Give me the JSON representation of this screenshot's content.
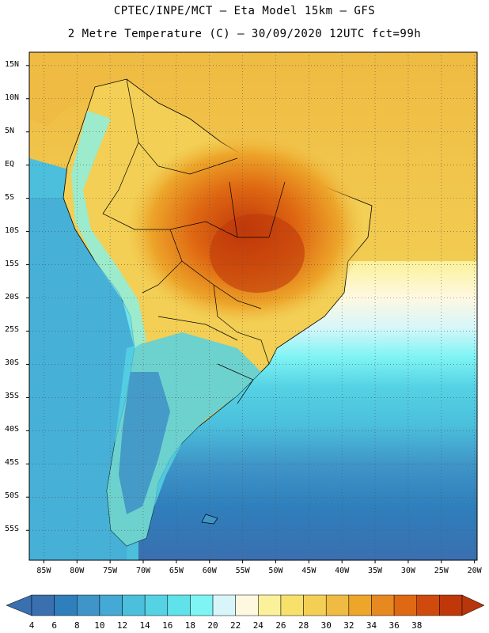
{
  "header": {
    "line1": "CPTEC/INPE/MCT  –  Eta Model 15km – GFS",
    "line2": "2 Metre Temperature (C) – 30/09/2020 12UTC fct=99h"
  },
  "axes": {
    "lat_labels": [
      "15N",
      "10N",
      "5N",
      "EQ",
      "5S",
      "10S",
      "15S",
      "20S",
      "25S",
      "30S",
      "35S",
      "40S",
      "45S",
      "50S",
      "55S"
    ],
    "lat_values": [
      15,
      10,
      5,
      0,
      -5,
      -10,
      -15,
      -20,
      -25,
      -30,
      -35,
      -40,
      -45,
      -50,
      -55
    ],
    "lon_labels": [
      "85W",
      "80W",
      "75W",
      "70W",
      "65W",
      "60W",
      "55W",
      "50W",
      "45W",
      "40W",
      "35W",
      "30W",
      "25W",
      "20W"
    ],
    "lon_values": [
      -85,
      -80,
      -75,
      -70,
      -65,
      -60,
      -55,
      -50,
      -45,
      -40,
      -35,
      -30,
      -25,
      -20
    ]
  },
  "colorbar": {
    "labels": [
      "4",
      "6",
      "8",
      "10",
      "12",
      "14",
      "16",
      "18",
      "20",
      "22",
      "24",
      "26",
      "28",
      "30",
      "32",
      "34",
      "36",
      "38"
    ],
    "colors": [
      "#3a6fb0",
      "#2f7fbc",
      "#3f95c8",
      "#44a9d4",
      "#4bbfdc",
      "#55d2e4",
      "#5fe2ea",
      "#7ff4f4",
      "#d8f6fa",
      "#fff8e0",
      "#fbf19a",
      "#f7e16a",
      "#f3cf55",
      "#efbb42",
      "#eda52a",
      "#e78820",
      "#df6812",
      "#cf4a0c",
      "#c0380a"
    ],
    "low_arrow_color": "#3a6fb0",
    "high_arrow_color": "#b8360b"
  }
}
